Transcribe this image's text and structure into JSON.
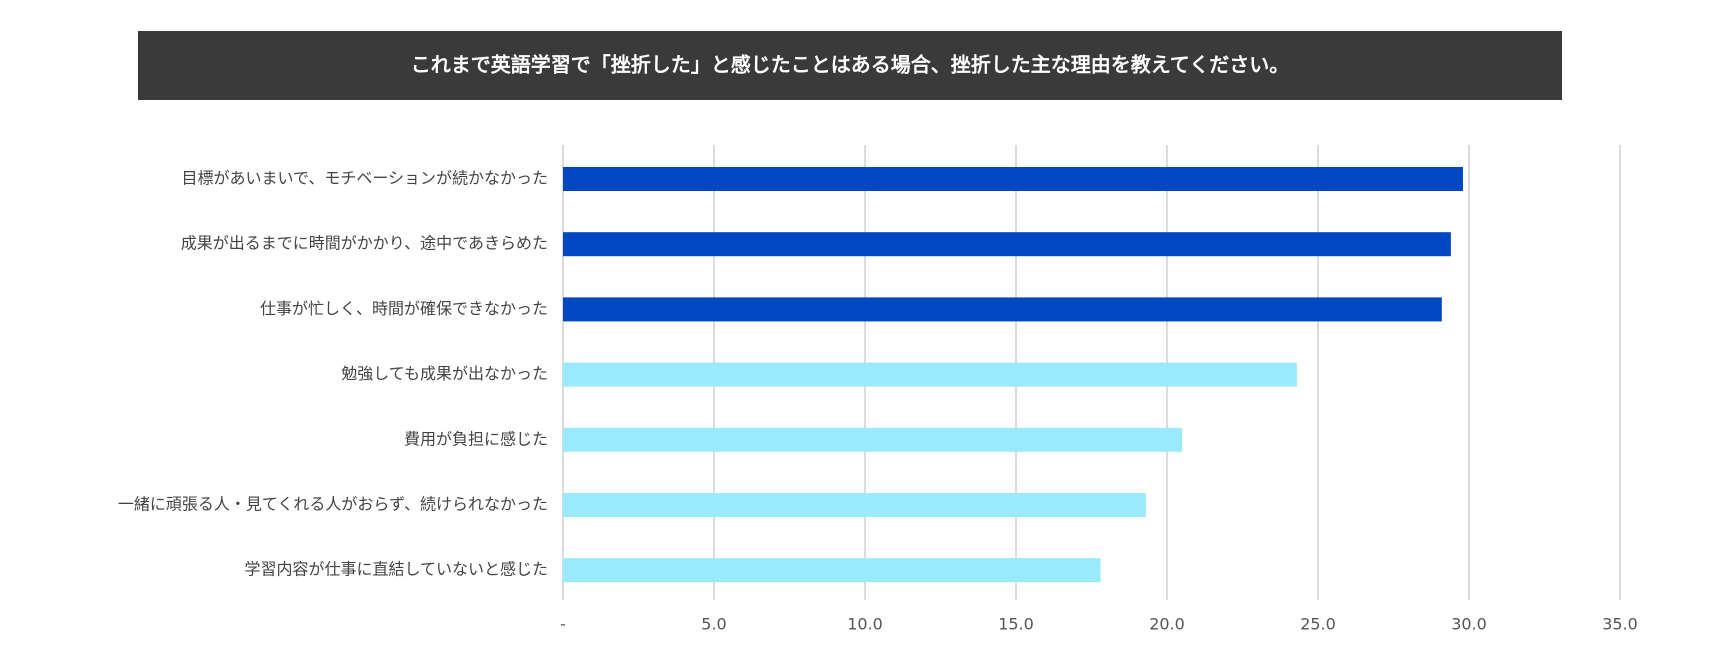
{
  "chart_data": {
    "type": "bar",
    "orientation": "horizontal",
    "title": "これまで英語学習で「挫折した」と感じたことはある場合、挫折した主な理由を教えてください。",
    "categories": [
      "目標があいまいで、モチベーションが続かなかった",
      "成果が出るまでに時間がかかり、途中であきらめた",
      "仕事が忙しく、時間が確保できなかった",
      "勉強しても成果が出なかった",
      "費用が負担に感じた",
      "一緒に頑張る人・見てくれる人がおらず、続けられなかった",
      "学習内容が仕事に直結していないと感じた"
    ],
    "values": [
      29.8,
      29.4,
      29.1,
      24.3,
      20.5,
      19.3,
      17.8
    ],
    "colors": [
      "#0047c2",
      "#0047c2",
      "#0047c2",
      "#99eafc",
      "#99eafc",
      "#99eafc",
      "#99eafc"
    ],
    "xlim": [
      0,
      35
    ],
    "xticks": [
      {
        "value": 0,
        "label": "-"
      },
      {
        "value": 5,
        "label": "5.0"
      },
      {
        "value": 10,
        "label": "10.0"
      },
      {
        "value": 15,
        "label": "15.0"
      },
      {
        "value": 20,
        "label": "20.0"
      },
      {
        "value": 25,
        "label": "25.0"
      },
      {
        "value": 30,
        "label": "30.0"
      },
      {
        "value": 35,
        "label": "35.0"
      }
    ],
    "grid": true
  }
}
